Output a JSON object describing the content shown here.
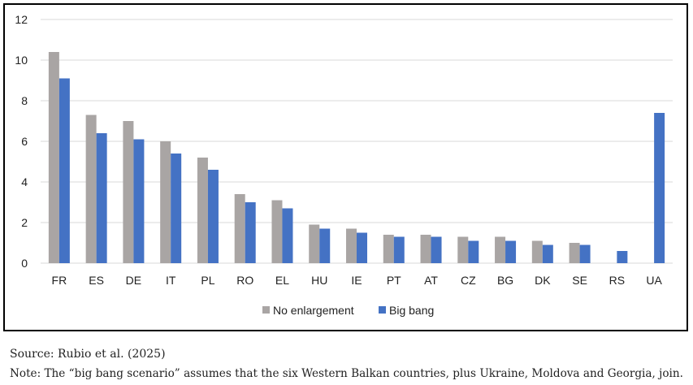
{
  "chart_data": {
    "type": "bar",
    "categories": [
      "FR",
      "ES",
      "DE",
      "IT",
      "PL",
      "RO",
      "EL",
      "HU",
      "IE",
      "PT",
      "AT",
      "CZ",
      "BG",
      "DK",
      "SE",
      "RS",
      "UA"
    ],
    "series": [
      {
        "name": "No enlargement",
        "color": "#a9a5a4",
        "values": [
          10.4,
          7.3,
          7.0,
          6.0,
          5.2,
          3.4,
          3.1,
          1.9,
          1.7,
          1.4,
          1.4,
          1.3,
          1.3,
          1.1,
          1.0,
          null,
          null
        ]
      },
      {
        "name": "Big bang",
        "color": "#4472c4",
        "values": [
          9.1,
          6.4,
          6.1,
          5.4,
          4.6,
          3.0,
          2.7,
          1.7,
          1.5,
          1.3,
          1.3,
          1.1,
          1.1,
          0.9,
          0.9,
          0.6,
          7.4
        ]
      }
    ],
    "yticks": [
      0,
      2,
      4,
      6,
      8,
      10,
      12
    ],
    "ylim": [
      0,
      12
    ],
    "grid": true,
    "legend_position": "bottom-center"
  },
  "source": "Source: Rubio et al. (2025)",
  "note": "Note: The “big bang scenario” assumes that the six Western Balkan countries, plus Ukraine, Moldova and Georgia, join."
}
